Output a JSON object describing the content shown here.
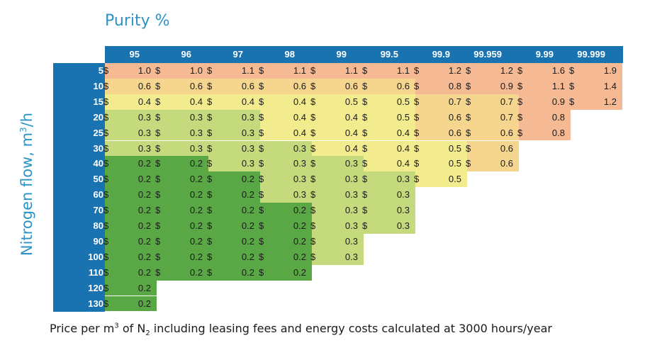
{
  "chart_data": {
    "type": "table",
    "title": "Purity %",
    "ylabel_main": "Nitrogen flow, m",
    "ylabel_sup": "3",
    "ylabel_tail": "/h",
    "currency_symbol": "$",
    "columns": [
      "95",
      "96",
      "97",
      "98",
      "99",
      "99.5",
      "99.9",
      "99.959",
      "9.99",
      "99.999"
    ],
    "rows": [
      {
        "flow": "5",
        "values": [
          "1.0",
          "1.0",
          "1.1",
          "1.1",
          "1.1",
          "1.1",
          "1.2",
          "1.2",
          "1.6",
          "1.9"
        ]
      },
      {
        "flow": "10",
        "values": [
          "0.6",
          "0.6",
          "0.6",
          "0.6",
          "0.6",
          "0.6",
          "0.8",
          "0.9",
          "1.1",
          "1.4"
        ]
      },
      {
        "flow": "15",
        "values": [
          "0.4",
          "0.4",
          "0.4",
          "0.4",
          "0.5",
          "0.5",
          "0.7",
          "0.7",
          "0.9",
          "1.2"
        ]
      },
      {
        "flow": "20",
        "values": [
          "0.3",
          "0.3",
          "0.3",
          "0.4",
          "0.4",
          "0.5",
          "0.6",
          "0.7",
          "0.8"
        ]
      },
      {
        "flow": "25",
        "values": [
          "0.3",
          "0.3",
          "0.3",
          "0.4",
          "0.4",
          "0.4",
          "0.6",
          "0.6",
          "0.8"
        ]
      },
      {
        "flow": "30",
        "values": [
          "0.3",
          "0.3",
          "0.3",
          "0.3",
          "0.4",
          "0.4",
          "0.5",
          "0.6"
        ]
      },
      {
        "flow": "40",
        "values": [
          "0.2",
          "0.2",
          "0.3",
          "0.3",
          "0.3",
          "0.4",
          "0.5",
          "0.6"
        ]
      },
      {
        "flow": "50",
        "values": [
          "0.2",
          "0.2",
          "0.2",
          "0.3",
          "0.3",
          "0.3",
          "0.5"
        ]
      },
      {
        "flow": "60",
        "values": [
          "0.2",
          "0.2",
          "0.2",
          "0.3",
          "0.3",
          "0.3"
        ]
      },
      {
        "flow": "70",
        "values": [
          "0.2",
          "0.2",
          "0.2",
          "0.2",
          "0.3",
          "0.3"
        ]
      },
      {
        "flow": "80",
        "values": [
          "0.2",
          "0.2",
          "0.2",
          "0.2",
          "0.3",
          "0.3"
        ]
      },
      {
        "flow": "90",
        "values": [
          "0.2",
          "0.2",
          "0.2",
          "0.2",
          "0.3"
        ]
      },
      {
        "flow": "100",
        "values": [
          "0.2",
          "0.2",
          "0.2",
          "0.2",
          "0.3"
        ]
      },
      {
        "flow": "110",
        "values": [
          "0.2",
          "0.2",
          "0.2",
          "0.2"
        ]
      },
      {
        "flow": "120",
        "values": [
          "0.2"
        ]
      },
      {
        "flow": "130",
        "values": [
          "0.2"
        ]
      }
    ],
    "colors": {
      "header_bg": "#1973b0",
      "title_text": "#2d93c4",
      "scale": [
        "#5aa845",
        "#8dc063",
        "#c5da7c",
        "#f3ec8e",
        "#f6d58e",
        "#f5b994"
      ]
    }
  },
  "footer": {
    "part1": "Price per m",
    "sup": "3",
    "part2": " of N",
    "sub": "2",
    "part3": " including leasing fees and energy costs calculated at 3000 hours/year"
  }
}
